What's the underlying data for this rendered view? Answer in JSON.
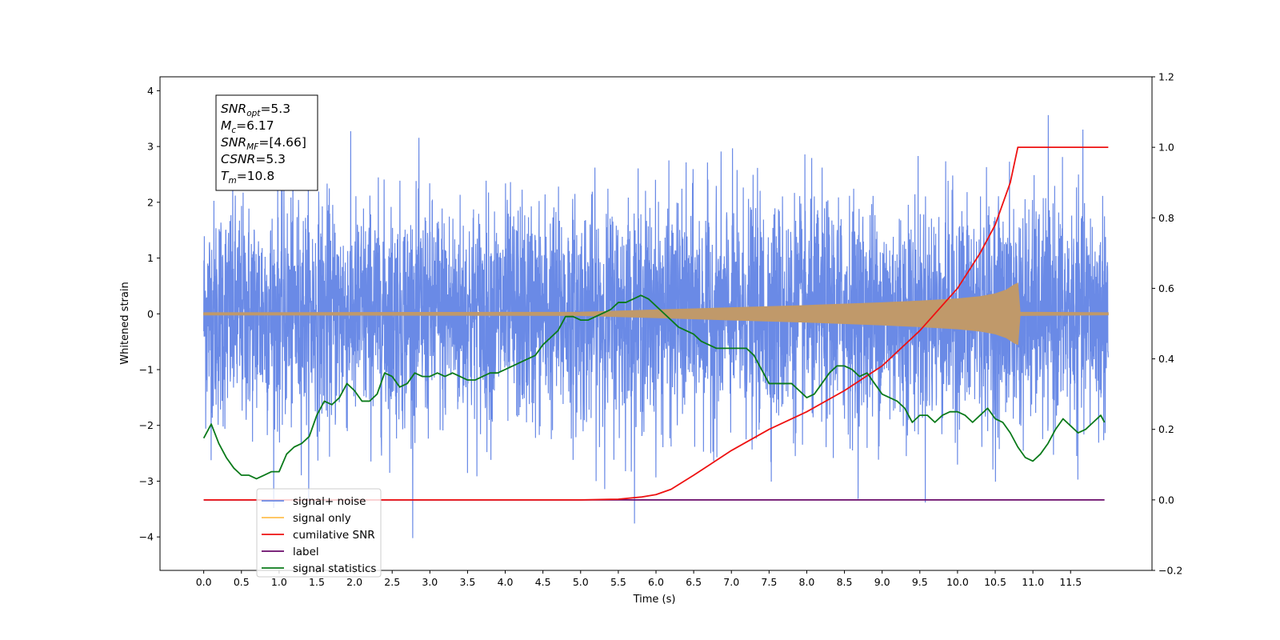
{
  "chart_data": {
    "type": "line",
    "xlabel": "Time (s)",
    "ylabel": "Whitened strain",
    "xlim": [
      -0.58,
      12.58
    ],
    "ylim": [
      -4.6,
      4.25
    ],
    "y2lim": [
      -0.2,
      1.2
    ],
    "x_ticks": [
      "0.0",
      "0.5",
      "1.0",
      "1.5",
      "2.0",
      "2.5",
      "3.0",
      "3.5",
      "4.0",
      "4.5",
      "5.0",
      "5.5",
      "6.0",
      "6.5",
      "7.0",
      "7.5",
      "8.0",
      "8.5",
      "9.0",
      "9.5",
      "10.0",
      "10.5",
      "11.0",
      "11.5"
    ],
    "y_ticks": [
      "4",
      "3",
      "2",
      "1",
      "0",
      "−1",
      "−2",
      "−3",
      "−4"
    ],
    "y2_ticks": [
      "1.2",
      "1.0",
      "0.8",
      "0.6",
      "0.4",
      "0.2",
      "0.0",
      "−0.2"
    ],
    "annotation": {
      "lines": [
        {
          "var": "SNR",
          "sub": "opt",
          "val": "=5.3"
        },
        {
          "var": "M",
          "sub": "c",
          "val": "=6.17"
        },
        {
          "var": "SNR",
          "sub": "MF",
          "val": "=[4.66]"
        },
        {
          "var": "CSNR",
          "sub": "",
          "val": "=5.3"
        },
        {
          "var": "T",
          "sub": "m",
          "val": "=10.8"
        }
      ]
    },
    "legend": {
      "placement": "lower-left",
      "entries": [
        "signal+ noise",
        "signal only",
        "cumilative SNR",
        "label",
        "signal statistics"
      ]
    },
    "colors": {
      "noise": "#6a8ae6",
      "signal": "#c0996a",
      "signal_legend": "#ffbf50",
      "cumsnr": "#ee1111",
      "label": "#6a0a6a",
      "stats": "#0a7a1a"
    },
    "series": [
      {
        "name": "signal+ noise",
        "axis": "left",
        "x_range": [
          0.0,
          12.0
        ],
        "band_mean": 0.0,
        "band_sigma": 1.0,
        "max_approx": 3.85,
        "min_approx": -4.1
      },
      {
        "name": "signal only",
        "axis": "left",
        "x_range": [
          0.0,
          12.0
        ],
        "merger_time": 10.8,
        "envelope": {
          "x": [
            0.0,
            5.0,
            6.0,
            7.0,
            8.0,
            9.0,
            9.5,
            10.0,
            10.3,
            10.5,
            10.65,
            10.75,
            10.8,
            10.83,
            12.0
          ],
          "y": [
            0.02,
            0.03,
            0.07,
            0.11,
            0.15,
            0.2,
            0.23,
            0.27,
            0.31,
            0.36,
            0.43,
            0.52,
            0.55,
            0.03,
            0.02
          ]
        }
      },
      {
        "name": "cumilative SNR",
        "axis": "right",
        "x": [
          0.0,
          5.0,
          5.5,
          5.8,
          6.0,
          6.2,
          6.5,
          7.0,
          7.5,
          8.0,
          8.5,
          9.0,
          9.5,
          10.0,
          10.3,
          10.5,
          10.7,
          10.8,
          10.85,
          12.0
        ],
        "y": [
          0.0,
          0.0,
          0.002,
          0.008,
          0.015,
          0.03,
          0.07,
          0.14,
          0.2,
          0.25,
          0.31,
          0.38,
          0.48,
          0.6,
          0.7,
          0.78,
          0.9,
          1.0,
          1.0,
          1.0
        ]
      },
      {
        "name": "label",
        "axis": "right",
        "x": [
          0.0,
          11.95
        ],
        "y": [
          0.0,
          0.0
        ]
      },
      {
        "name": "signal statistics",
        "axis": "right",
        "x": [
          0.0,
          0.1,
          0.2,
          0.3,
          0.4,
          0.5,
          0.6,
          0.7,
          0.8,
          0.9,
          1.0,
          1.1,
          1.2,
          1.3,
          1.4,
          1.5,
          1.6,
          1.7,
          1.8,
          1.9,
          2.0,
          2.1,
          2.2,
          2.3,
          2.4,
          2.5,
          2.6,
          2.7,
          2.8,
          2.9,
          3.0,
          3.1,
          3.2,
          3.3,
          3.4,
          3.5,
          3.6,
          3.7,
          3.8,
          3.9,
          4.0,
          4.1,
          4.2,
          4.3,
          4.4,
          4.5,
          4.6,
          4.7,
          4.8,
          4.9,
          5.0,
          5.1,
          5.2,
          5.3,
          5.4,
          5.5,
          5.6,
          5.7,
          5.8,
          5.9,
          6.0,
          6.1,
          6.2,
          6.3,
          6.4,
          6.5,
          6.6,
          6.7,
          6.8,
          6.9,
          7.0,
          7.1,
          7.2,
          7.3,
          7.4,
          7.5,
          7.6,
          7.7,
          7.8,
          7.9,
          8.0,
          8.1,
          8.2,
          8.3,
          8.4,
          8.5,
          8.6,
          8.7,
          8.8,
          8.9,
          9.0,
          9.1,
          9.2,
          9.3,
          9.4,
          9.5,
          9.6,
          9.7,
          9.8,
          9.9,
          10.0,
          10.1,
          10.2,
          10.3,
          10.4,
          10.5,
          10.6,
          10.7,
          10.8,
          10.9,
          11.0,
          11.1,
          11.2,
          11.3,
          11.4,
          11.5,
          11.6,
          11.7,
          11.8,
          11.9,
          11.95
        ],
        "y": [
          0.175,
          0.215,
          0.16,
          0.12,
          0.09,
          0.07,
          0.07,
          0.06,
          0.07,
          0.08,
          0.08,
          0.13,
          0.15,
          0.16,
          0.18,
          0.24,
          0.28,
          0.27,
          0.29,
          0.33,
          0.31,
          0.28,
          0.28,
          0.3,
          0.36,
          0.35,
          0.32,
          0.33,
          0.36,
          0.35,
          0.35,
          0.36,
          0.35,
          0.36,
          0.35,
          0.34,
          0.34,
          0.35,
          0.36,
          0.36,
          0.37,
          0.38,
          0.39,
          0.4,
          0.41,
          0.44,
          0.46,
          0.48,
          0.52,
          0.52,
          0.51,
          0.51,
          0.52,
          0.53,
          0.54,
          0.56,
          0.56,
          0.57,
          0.58,
          0.57,
          0.55,
          0.53,
          0.51,
          0.49,
          0.48,
          0.47,
          0.45,
          0.44,
          0.43,
          0.43,
          0.43,
          0.43,
          0.43,
          0.41,
          0.37,
          0.33,
          0.33,
          0.33,
          0.33,
          0.31,
          0.29,
          0.3,
          0.33,
          0.36,
          0.38,
          0.38,
          0.37,
          0.35,
          0.36,
          0.33,
          0.3,
          0.29,
          0.28,
          0.26,
          0.22,
          0.24,
          0.24,
          0.22,
          0.24,
          0.25,
          0.25,
          0.24,
          0.22,
          0.24,
          0.26,
          0.23,
          0.22,
          0.19,
          0.15,
          0.12,
          0.11,
          0.13,
          0.16,
          0.2,
          0.23,
          0.21,
          0.19,
          0.2,
          0.22,
          0.24,
          0.22
        ]
      }
    ]
  }
}
